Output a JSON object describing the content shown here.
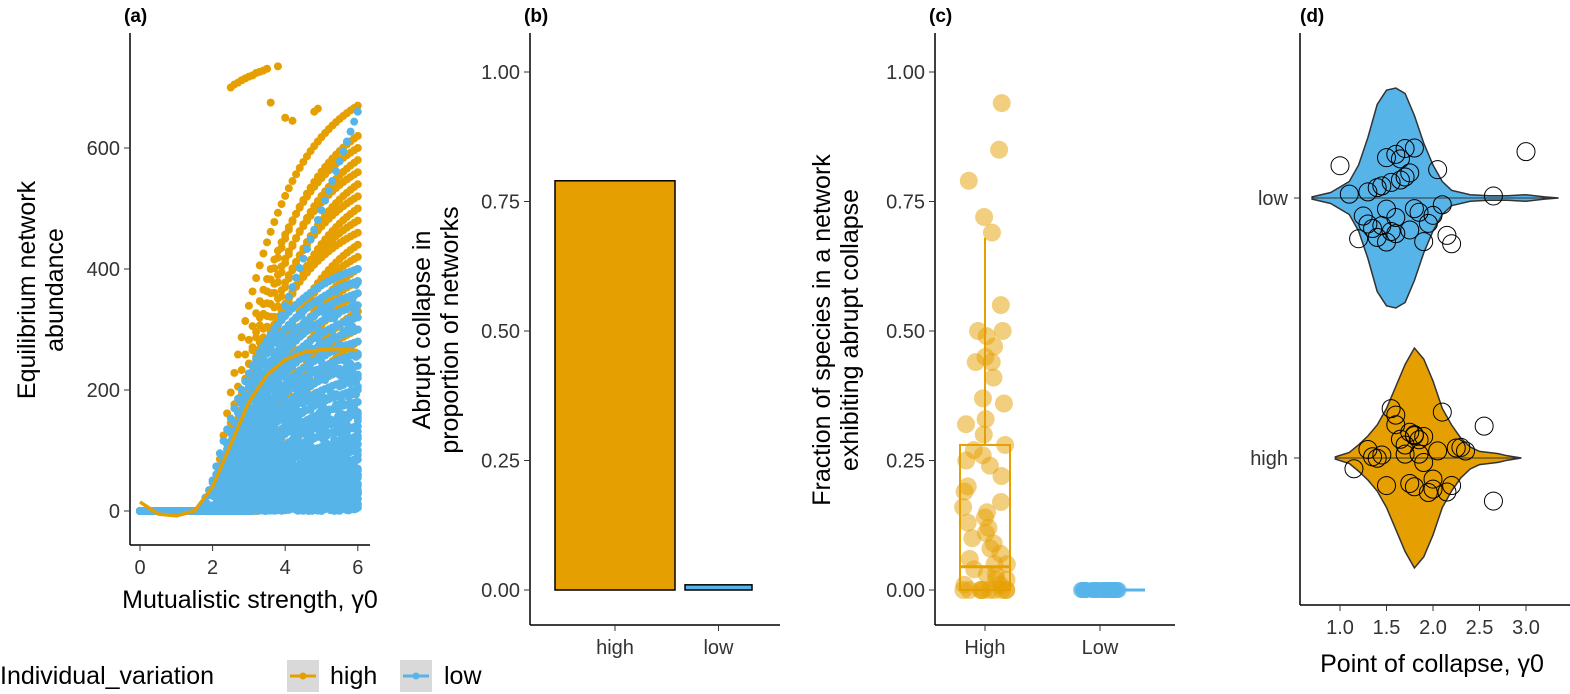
{
  "colors": {
    "high": "#E69F00",
    "low": "#56B4E9"
  },
  "legend": {
    "title": "Individual_variation",
    "items": [
      "high",
      "low"
    ],
    "placement": "bottom-left"
  },
  "chart_data": [
    {
      "panel": "(a)",
      "type": "scatter",
      "xlabel": "Mutualistic strength, γ0",
      "ylabel_lines": [
        "Equilibrium network",
        "abundance"
      ],
      "xlim": [
        -0.3,
        6.3
      ],
      "ylim": [
        -56,
        790
      ],
      "xticks": [
        "0",
        "2",
        "4",
        "6"
      ],
      "yticks": [
        "0",
        "200",
        "400",
        "600"
      ],
      "curves": [
        {
          "group": "high",
          "onset": 2.0,
          "end_value": 670
        },
        {
          "group": "high",
          "onset": 2.3,
          "end_value": 620
        },
        {
          "group": "high",
          "onset": 2.1,
          "end_value": 600
        },
        {
          "group": "high",
          "onset": 2.4,
          "end_value": 580
        },
        {
          "group": "high",
          "onset": 2.2,
          "end_value": 560
        },
        {
          "group": "high",
          "onset": 2.5,
          "end_value": 540
        },
        {
          "group": "high",
          "onset": 2.3,
          "end_value": 520
        },
        {
          "group": "high",
          "onset": 2.6,
          "end_value": 500
        },
        {
          "group": "high",
          "onset": 2.4,
          "end_value": 480
        },
        {
          "group": "high",
          "onset": 2.2,
          "end_value": 460
        },
        {
          "group": "high",
          "onset": 2.7,
          "end_value": 440
        },
        {
          "group": "high",
          "onset": 2.5,
          "end_value": 420
        },
        {
          "group": "high",
          "onset": 2.8,
          "end_value": 400
        },
        {
          "group": "high",
          "onset": 2.6,
          "end_value": 380
        },
        {
          "group": "high",
          "onset": 2.9,
          "end_value": 360
        },
        {
          "group": "high",
          "onset": 3.0,
          "end_value": 330
        },
        {
          "group": "high",
          "onset": 2.7,
          "end_value": 300
        },
        {
          "group": "high",
          "onset": 3.2,
          "end_value": 280
        },
        {
          "group": "low",
          "onset": 1.6,
          "end_value": 660,
          "linear": true
        },
        {
          "group": "low",
          "onset": 1.8,
          "end_value": 400
        },
        {
          "group": "low",
          "onset": 1.9,
          "end_value": 380
        },
        {
          "group": "low",
          "onset": 2.0,
          "end_value": 360
        },
        {
          "group": "low",
          "onset": 2.0,
          "end_value": 340
        },
        {
          "group": "low",
          "onset": 2.1,
          "end_value": 320
        },
        {
          "group": "low",
          "onset": 2.1,
          "end_value": 300
        },
        {
          "group": "low",
          "onset": 2.2,
          "end_value": 280
        },
        {
          "group": "low",
          "onset": 2.2,
          "end_value": 260
        },
        {
          "group": "low",
          "onset": 2.3,
          "end_value": 240
        },
        {
          "group": "low",
          "onset": 2.3,
          "end_value": 220
        },
        {
          "group": "low",
          "onset": 2.4,
          "end_value": 200
        },
        {
          "group": "low",
          "onset": 2.4,
          "end_value": 180
        },
        {
          "group": "low",
          "onset": 2.5,
          "end_value": 160
        },
        {
          "group": "low",
          "onset": 2.5,
          "end_value": 140
        },
        {
          "group": "low",
          "onset": 2.6,
          "end_value": 120
        },
        {
          "group": "low",
          "onset": 2.6,
          "end_value": 100
        },
        {
          "group": "low",
          "onset": 2.7,
          "end_value": 85
        },
        {
          "group": "low",
          "onset": 2.7,
          "end_value": 70
        },
        {
          "group": "low",
          "onset": 2.8,
          "end_value": 55
        },
        {
          "group": "low",
          "onset": 2.8,
          "end_value": 42
        },
        {
          "group": "low",
          "onset": 2.9,
          "end_value": 30
        },
        {
          "group": "low",
          "onset": 3.0,
          "end_value": 20
        },
        {
          "group": "low",
          "onset": 3.0,
          "end_value": 12
        }
      ],
      "extra_points_high": [
        [
          2.5,
          700
        ],
        [
          2.6,
          705
        ],
        [
          2.7,
          708
        ],
        [
          2.8,
          712
        ],
        [
          2.9,
          715
        ],
        [
          3.0,
          718
        ],
        [
          3.1,
          720
        ],
        [
          3.2,
          724
        ],
        [
          3.3,
          726
        ],
        [
          3.4,
          728
        ],
        [
          3.5,
          731
        ],
        [
          3.8,
          735
        ],
        [
          3.6,
          675
        ],
        [
          4.0,
          650
        ],
        [
          4.2,
          645
        ],
        [
          4.8,
          660
        ],
        [
          4.9,
          665
        ]
      ],
      "smooth_high": [
        [
          0,
          15
        ],
        [
          0.5,
          -5
        ],
        [
          1,
          -8
        ],
        [
          1.5,
          0
        ],
        [
          2,
          40
        ],
        [
          2.5,
          110
        ],
        [
          3,
          180
        ],
        [
          3.5,
          225
        ],
        [
          4,
          250
        ],
        [
          4.5,
          262
        ],
        [
          5,
          267
        ],
        [
          5.5,
          268
        ],
        [
          6,
          265
        ]
      ]
    },
    {
      "panel": "(b)",
      "type": "bar",
      "categories": [
        "high",
        "low"
      ],
      "values": [
        0.79,
        0.01
      ],
      "ylabel_lines": [
        "Abrupt collapse in",
        "proportion of networks"
      ],
      "ylim": [
        0,
        1.05
      ],
      "yticks": [
        "0.00",
        "0.25",
        "0.50",
        "0.75",
        "1.00"
      ]
    },
    {
      "panel": "(c)",
      "type": "box+jitter",
      "categories": [
        "High",
        "Low"
      ],
      "ylabel_lines": [
        "Fraction of species in a network",
        "exhibiting abrupt collapse"
      ],
      "ylim": [
        0,
        1.05
      ],
      "yticks": [
        "0.00",
        "0.25",
        "0.50",
        "0.75",
        "1.00"
      ],
      "box_high": {
        "q1": 0,
        "median": 0.045,
        "q3": 0.28,
        "whisker_high": 0.68,
        "whisker_low": 0
      },
      "box_low": {
        "q1": 0,
        "median": 0,
        "q3": 0,
        "whisker_high": 0,
        "whisker_low": 0
      },
      "points_high": [
        0.94,
        0.85,
        0.79,
        0.72,
        0.69,
        0.55,
        0.5,
        0.5,
        0.49,
        0.47,
        0.45,
        0.44,
        0.44,
        0.41,
        0.37,
        0.36,
        0.33,
        0.32,
        0.3,
        0.28,
        0.27,
        0.26,
        0.25,
        0.24,
        0.22,
        0.2,
        0.19,
        0.17,
        0.16,
        0.15,
        0.14,
        0.13,
        0.12,
        0.11,
        0.1,
        0.09,
        0.08,
        0.07,
        0.06,
        0.05,
        0.05,
        0.04,
        0.03,
        0.03,
        0.02,
        0.02,
        0.01,
        0.01,
        0,
        0,
        0,
        0,
        0,
        0,
        0,
        0,
        0,
        0
      ],
      "points_low_count": 40
    },
    {
      "panel": "(d)",
      "type": "violin+points",
      "categories": [
        "low",
        "high"
      ],
      "xlabel": "Point of collapse, γ0",
      "xlim": [
        0.57,
        3.5
      ],
      "xticks": [
        "1.0",
        "1.5",
        "2.0",
        "2.5",
        "3.0"
      ],
      "violin_low": {
        "x": [
          0.7,
          0.9,
          1.1,
          1.2,
          1.3,
          1.4,
          1.5,
          1.6,
          1.7,
          1.8,
          1.9,
          2.0,
          2.1,
          2.2,
          2.4,
          2.6,
          2.8,
          3.0,
          3.2,
          3.35
        ],
        "density": [
          0.01,
          0.05,
          0.15,
          0.3,
          0.55,
          0.85,
          0.98,
          1.0,
          0.95,
          0.75,
          0.5,
          0.3,
          0.15,
          0.07,
          0.03,
          0.02,
          0.02,
          0.03,
          0.01,
          0
        ]
      },
      "violin_high": {
        "x": [
          0.95,
          1.1,
          1.2,
          1.3,
          1.4,
          1.5,
          1.6,
          1.7,
          1.8,
          1.9,
          2.0,
          2.1,
          2.2,
          2.3,
          2.4,
          2.5,
          2.6,
          2.7,
          2.8,
          2.95
        ],
        "density": [
          0.01,
          0.05,
          0.12,
          0.2,
          0.3,
          0.45,
          0.65,
          0.85,
          1.0,
          0.9,
          0.7,
          0.45,
          0.3,
          0.18,
          0.1,
          0.06,
          0.05,
          0.04,
          0.02,
          0
        ]
      },
      "points_low": [
        1.0,
        1.1,
        1.2,
        1.25,
        1.3,
        1.3,
        1.35,
        1.4,
        1.4,
        1.45,
        1.45,
        1.5,
        1.5,
        1.5,
        1.55,
        1.55,
        1.6,
        1.6,
        1.6,
        1.65,
        1.65,
        1.7,
        1.7,
        1.75,
        1.75,
        1.8,
        1.8,
        1.85,
        1.9,
        1.95,
        2.0,
        2.05,
        2.1,
        2.15,
        2.2,
        2.65,
        3.0
      ],
      "points_high": [
        1.15,
        1.3,
        1.35,
        1.4,
        1.45,
        1.5,
        1.55,
        1.6,
        1.6,
        1.65,
        1.7,
        1.7,
        1.75,
        1.75,
        1.8,
        1.8,
        1.8,
        1.85,
        1.85,
        1.9,
        1.9,
        1.95,
        2.0,
        2.0,
        2.05,
        2.1,
        2.15,
        2.2,
        2.25,
        2.3,
        2.35,
        2.55,
        2.65
      ]
    }
  ]
}
